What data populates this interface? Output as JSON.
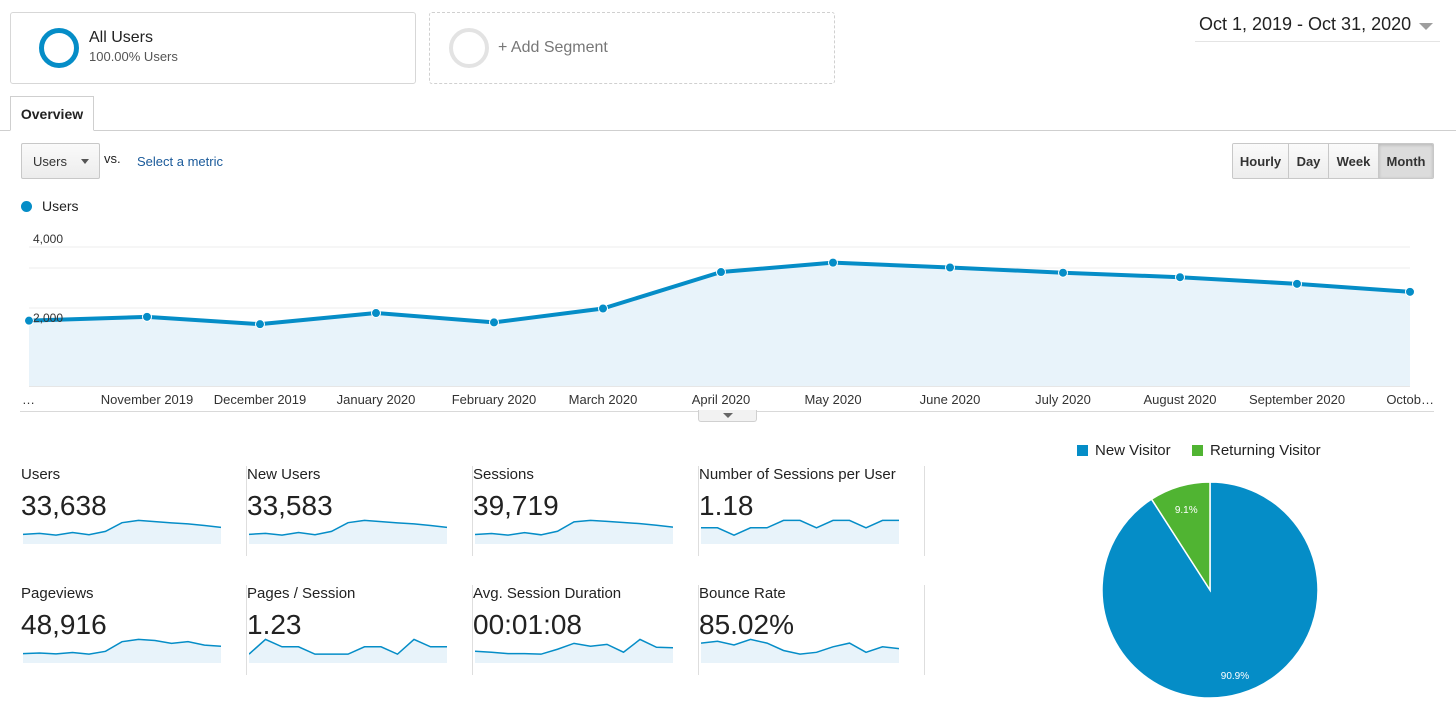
{
  "segments": {
    "active": {
      "title": "All Users",
      "subtitle": "100.00% Users"
    },
    "add": {
      "label": "+ Add Segment"
    }
  },
  "date_range": "Oct 1, 2019 - Oct 31, 2020",
  "tabs": [
    "Overview"
  ],
  "controls": {
    "metric": "Users",
    "vs": "vs.",
    "select_metric": "Select a metric",
    "granularity": [
      "Hourly",
      "Day",
      "Week",
      "Month"
    ],
    "granularity_selected": "Month"
  },
  "colors": {
    "accent": "#058dc7",
    "area": "#e8f3fa",
    "returning": "#50b432"
  },
  "chart_data": [
    {
      "type": "line",
      "series": [
        {
          "name": "Users",
          "values": [
            1880,
            1990,
            1780,
            2100,
            1830,
            2230,
            3280,
            3550,
            3410,
            3260,
            3130,
            2940,
            2710
          ]
        }
      ],
      "categories": [
        "…",
        "November 2019",
        "December 2019",
        "January 2020",
        "February 2020",
        "March 2020",
        "April 2020",
        "May 2020",
        "June 2020",
        "July 2020",
        "August 2020",
        "September 2020",
        "Octob…"
      ],
      "yticks": [
        "4,000",
        "2,000"
      ],
      "ylim": [
        0,
        4000
      ],
      "grid": true,
      "legend": "top-left"
    },
    {
      "type": "pie",
      "labels": [
        "New Visitor",
        "Returning Visitor"
      ],
      "values": [
        90.9,
        9.1
      ],
      "value_labels": [
        "90.9%",
        "9.1%"
      ],
      "colors": [
        "#058dc7",
        "#50b432"
      ],
      "legend": "top"
    }
  ],
  "kpis": [
    {
      "label": "Users",
      "value": "33,638",
      "spark": [
        1880,
        1990,
        1780,
        2100,
        1830,
        2230,
        3280,
        3550,
        3410,
        3260,
        3130,
        2940,
        2710
      ]
    },
    {
      "label": "New Users",
      "value": "33,583",
      "spark": [
        1870,
        1980,
        1770,
        2090,
        1820,
        2220,
        3270,
        3540,
        3400,
        3250,
        3120,
        2930,
        2700
      ]
    },
    {
      "label": "Sessions",
      "value": "39,719",
      "spark": [
        2150,
        2300,
        2060,
        2420,
        2110,
        2610,
        3950,
        4150,
        4010,
        3850,
        3700,
        3470,
        3200
      ]
    },
    {
      "label": "Number of Sessions per User",
      "value": "1.18",
      "spark": [
        1.17,
        1.17,
        1.16,
        1.17,
        1.17,
        1.18,
        1.18,
        1.17,
        1.18,
        1.18,
        1.17,
        1.18,
        1.18
      ]
    },
    {
      "label": "Pageviews",
      "value": "48,916",
      "spark": [
        2600,
        2700,
        2550,
        2800,
        2500,
        3000,
        4700,
        5100,
        4900,
        4400,
        4700,
        4100,
        3900
      ]
    },
    {
      "label": "Pages / Session",
      "value": "1.23",
      "spark": [
        1.22,
        1.24,
        1.23,
        1.23,
        1.22,
        1.22,
        1.22,
        1.23,
        1.23,
        1.22,
        1.24,
        1.23,
        1.23
      ]
    },
    {
      "label": "Avg. Session Duration",
      "value": "00:01:08",
      "spark": [
        60,
        58,
        55,
        55,
        54,
        64,
        76,
        70,
        74,
        58,
        84,
        68,
        67
      ]
    },
    {
      "label": "Bounce Rate",
      "value": "85.02%",
      "spark": [
        85.2,
        85.3,
        85.1,
        85.4,
        85.2,
        84.8,
        84.6,
        84.7,
        85.0,
        85.2,
        84.7,
        85.0,
        84.9
      ]
    }
  ]
}
